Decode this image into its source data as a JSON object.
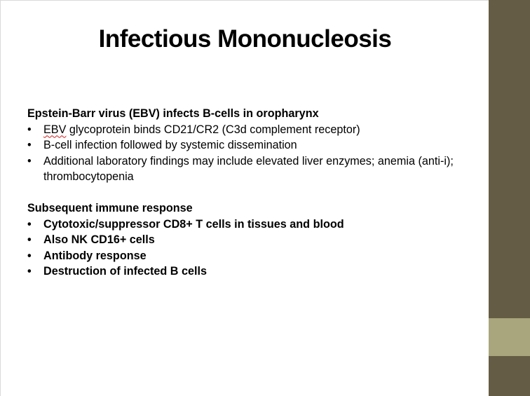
{
  "slide": {
    "title": "Infectious Mononucleosis",
    "section1": {
      "heading": "Epstein-Barr virus (EBV) infects B-cells in oropharynx",
      "bullets": [
        {
          "pre": "EBV",
          "rest": " glycoprotein binds CD21/CR2 (C3d complement receptor)"
        },
        {
          "text": "B-cell infection followed by systemic dissemination"
        },
        {
          "text": "Additional laboratory findings may include elevated liver enzymes; anemia (anti-i); thrombocytopenia"
        }
      ]
    },
    "section2": {
      "heading": "Subsequent immune response",
      "bullets": [
        "Cytotoxic/suppressor CD8+ T cells in tissues and blood",
        "Also NK CD16+ cells",
        "Antibody response",
        "Destruction of infected B cells"
      ]
    },
    "bullet_glyph": "•"
  },
  "theme": {
    "sidebar_dark": "#655c45",
    "sidebar_light": "#a9a57c"
  }
}
